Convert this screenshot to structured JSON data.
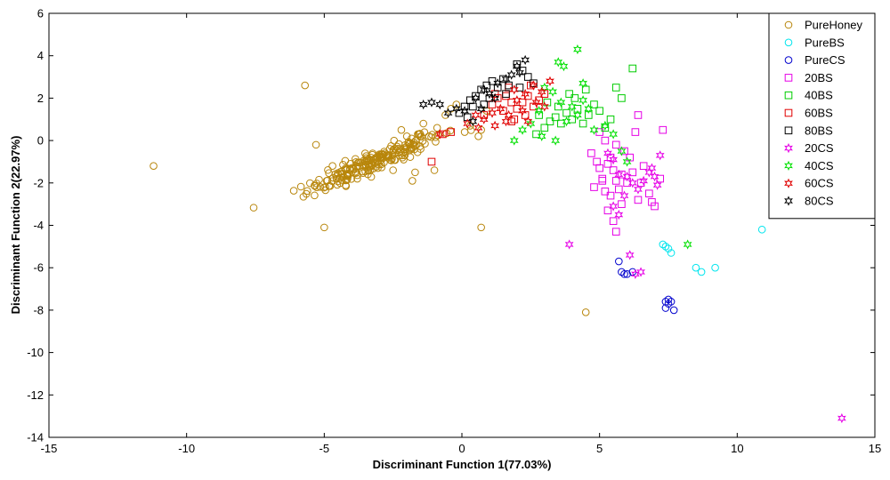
{
  "chart_data": {
    "type": "scatter",
    "title": "",
    "xlabel": "Discriminant Function 1(77.03%)",
    "ylabel": "Discriminant Function 2(22.97%)",
    "xlim": [
      -15,
      15
    ],
    "ylim": [
      -14,
      6
    ],
    "xticks": [
      -15,
      -10,
      -5,
      0,
      5,
      10,
      15
    ],
    "yticks": [
      -14,
      -12,
      -10,
      -8,
      -6,
      -4,
      -2,
      0,
      2,
      4,
      6
    ],
    "grid": false,
    "legend_position": "top-right",
    "series": [
      {
        "name": "PureHoney",
        "marker": "circle",
        "color": "#b8860b",
        "cluster": {
          "center": [
            -3.2,
            -1.0
          ],
          "count": 210,
          "direction": [
            0.87,
            0.49
          ],
          "spread_along": 1.4,
          "spread_across": 0.22
        },
        "points": [
          [
            -11.2,
            -1.2
          ],
          [
            -5.7,
            2.6
          ],
          [
            -5.3,
            -0.2
          ],
          [
            -5.0,
            -4.1
          ],
          [
            -4.7,
            -1.2
          ],
          [
            -4.5,
            -1.6
          ],
          [
            -1.8,
            -1.9
          ],
          [
            -1.7,
            -1.5
          ],
          [
            -1.0,
            -1.4
          ],
          [
            -1.2,
            0.2
          ],
          [
            -0.9,
            0.6
          ],
          [
            -0.6,
            1.2
          ],
          [
            -0.4,
            1.5
          ],
          [
            -0.2,
            1.7
          ],
          [
            0.1,
            0.4
          ],
          [
            0.3,
            0.7
          ],
          [
            0.6,
            0.2
          ],
          [
            0.7,
            0.5
          ],
          [
            0.9,
            1.4
          ],
          [
            0.7,
            -4.1
          ],
          [
            4.5,
            -8.1
          ],
          [
            -2.2,
            0.5
          ],
          [
            -2.0,
            0.2
          ],
          [
            -1.6,
            0.3
          ],
          [
            -1.4,
            0.8
          ],
          [
            -1.5,
            -0.4
          ],
          [
            -2.5,
            -1.4
          ],
          [
            -3.8,
            -1.8
          ],
          [
            -4.3,
            -1.7
          ]
        ]
      },
      {
        "name": "PureBS",
        "marker": "circle",
        "color": "#00e5ee",
        "points": [
          [
            7.3,
            -4.9
          ],
          [
            7.4,
            -5.0
          ],
          [
            7.5,
            -5.1
          ],
          [
            7.6,
            -5.3
          ],
          [
            8.5,
            -6.0
          ],
          [
            8.7,
            -6.2
          ],
          [
            9.2,
            -6.0
          ],
          [
            10.9,
            -4.2
          ]
        ]
      },
      {
        "name": "PureCS",
        "marker": "circle",
        "color": "#0000cd",
        "points": [
          [
            5.7,
            -5.7
          ],
          [
            5.8,
            -6.2
          ],
          [
            5.9,
            -6.3
          ],
          [
            6.0,
            -6.3
          ],
          [
            6.2,
            -6.2
          ],
          [
            7.4,
            -7.6
          ],
          [
            7.5,
            -7.5
          ],
          [
            7.6,
            -7.6
          ],
          [
            7.4,
            -7.9
          ],
          [
            7.7,
            -8.0
          ],
          [
            7.5,
            -7.7
          ]
        ]
      },
      {
        "name": "20BS",
        "marker": "square",
        "color": "#e600e6",
        "points": [
          [
            4.7,
            -0.6
          ],
          [
            4.9,
            -1.0
          ],
          [
            5.0,
            -1.3
          ],
          [
            4.8,
            -2.2
          ],
          [
            5.1,
            -1.8
          ],
          [
            5.2,
            -2.4
          ],
          [
            5.3,
            -1.1
          ],
          [
            5.4,
            -0.8
          ],
          [
            5.5,
            -1.4
          ],
          [
            5.6,
            -1.9
          ],
          [
            5.7,
            -2.3
          ],
          [
            5.8,
            -1.6
          ],
          [
            5.3,
            -3.3
          ],
          [
            5.5,
            -3.8
          ],
          [
            5.6,
            -4.3
          ],
          [
            5.8,
            -3.0
          ],
          [
            6.0,
            -2.0
          ],
          [
            6.2,
            -1.5
          ],
          [
            6.4,
            -2.8
          ],
          [
            6.5,
            -2.0
          ],
          [
            6.6,
            -1.2
          ],
          [
            6.8,
            -2.5
          ],
          [
            6.9,
            -2.9
          ],
          [
            7.0,
            -3.1
          ],
          [
            7.3,
            0.5
          ],
          [
            7.2,
            -1.8
          ],
          [
            6.3,
            0.4
          ],
          [
            6.1,
            -0.8
          ],
          [
            5.9,
            -0.5
          ],
          [
            5.0,
            0.4
          ],
          [
            5.2,
            0.0
          ],
          [
            5.6,
            -0.2
          ],
          [
            6.4,
            1.2
          ],
          [
            5.1,
            -1.9
          ],
          [
            5.4,
            -2.6
          ]
        ]
      },
      {
        "name": "40BS",
        "marker": "square",
        "color": "#00cc00",
        "points": [
          [
            2.8,
            1.2
          ],
          [
            3.0,
            0.6
          ],
          [
            3.2,
            0.9
          ],
          [
            3.4,
            1.1
          ],
          [
            3.6,
            0.8
          ],
          [
            3.8,
            1.3
          ],
          [
            4.0,
            1.0
          ],
          [
            4.2,
            1.5
          ],
          [
            4.4,
            0.8
          ],
          [
            4.6,
            1.2
          ],
          [
            4.8,
            1.7
          ],
          [
            5.0,
            1.4
          ],
          [
            5.2,
            0.6
          ],
          [
            5.4,
            1.0
          ],
          [
            5.6,
            2.5
          ],
          [
            5.8,
            2.0
          ],
          [
            6.2,
            3.4
          ],
          [
            4.1,
            2.0
          ],
          [
            3.5,
            1.6
          ],
          [
            2.7,
            0.3
          ],
          [
            3.1,
            1.8
          ],
          [
            3.9,
            2.2
          ],
          [
            4.5,
            2.4
          ]
        ]
      },
      {
        "name": "60BS",
        "marker": "square",
        "color": "#e00000",
        "points": [
          [
            -1.1,
            -1.0
          ],
          [
            -0.7,
            0.3
          ],
          [
            -0.4,
            0.4
          ],
          [
            0.8,
            1.2
          ],
          [
            1.1,
            1.7
          ],
          [
            1.3,
            2.0
          ],
          [
            1.6,
            2.1
          ],
          [
            1.8,
            1.8
          ],
          [
            2.0,
            1.5
          ],
          [
            2.2,
            1.8
          ],
          [
            2.4,
            2.1
          ],
          [
            2.6,
            1.6
          ],
          [
            2.8,
            1.9
          ],
          [
            3.0,
            2.2
          ],
          [
            1.5,
            1.4
          ],
          [
            1.9,
            1.0
          ],
          [
            2.3,
            1.2
          ],
          [
            1.2,
            2.2
          ],
          [
            1.7,
            2.5
          ],
          [
            2.5,
            2.6
          ],
          [
            1.8,
            0.9
          ]
        ]
      },
      {
        "name": "80BS",
        "marker": "square",
        "color": "#000000",
        "points": [
          [
            -0.1,
            1.3
          ],
          [
            0.1,
            1.6
          ],
          [
            0.3,
            1.9
          ],
          [
            0.5,
            2.1
          ],
          [
            0.7,
            2.4
          ],
          [
            0.9,
            2.6
          ],
          [
            1.1,
            2.8
          ],
          [
            1.3,
            2.5
          ],
          [
            1.5,
            2.9
          ],
          [
            1.7,
            2.6
          ],
          [
            2.0,
            3.6
          ],
          [
            2.2,
            3.3
          ],
          [
            2.4,
            3.0
          ],
          [
            2.6,
            2.7
          ],
          [
            0.8,
            1.7
          ],
          [
            1.0,
            2.0
          ],
          [
            1.6,
            2.2
          ],
          [
            2.1,
            2.5
          ],
          [
            0.2,
            1.1
          ],
          [
            0.4,
            1.6
          ]
        ]
      },
      {
        "name": "20CS",
        "marker": "star",
        "color": "#e600e6",
        "points": [
          [
            3.9,
            -4.9
          ],
          [
            5.3,
            -0.6
          ],
          [
            5.5,
            -0.9
          ],
          [
            5.7,
            -1.6
          ],
          [
            6.0,
            -1.7
          ],
          [
            6.2,
            -2.0
          ],
          [
            6.4,
            -2.3
          ],
          [
            6.6,
            -1.9
          ],
          [
            6.8,
            -1.5
          ],
          [
            7.0,
            -1.7
          ],
          [
            7.2,
            -0.7
          ],
          [
            5.5,
            -3.1
          ],
          [
            5.7,
            -3.5
          ],
          [
            5.9,
            -2.6
          ],
          [
            6.1,
            -5.4
          ],
          [
            6.3,
            -6.3
          ],
          [
            6.5,
            -6.2
          ],
          [
            13.8,
            -13.1
          ],
          [
            7.1,
            -2.1
          ],
          [
            6.9,
            -1.3
          ]
        ]
      },
      {
        "name": "40CS",
        "marker": "star",
        "color": "#00e000",
        "points": [
          [
            1.9,
            0.0
          ],
          [
            2.2,
            0.5
          ],
          [
            2.5,
            0.8
          ],
          [
            2.8,
            1.4
          ],
          [
            3.0,
            2.5
          ],
          [
            3.3,
            2.3
          ],
          [
            3.6,
            1.8
          ],
          [
            3.8,
            0.9
          ],
          [
            4.0,
            1.6
          ],
          [
            4.2,
            1.2
          ],
          [
            4.4,
            1.9
          ],
          [
            4.6,
            1.5
          ],
          [
            4.2,
            4.3
          ],
          [
            3.7,
            3.5
          ],
          [
            2.9,
            0.2
          ],
          [
            3.4,
            0.0
          ],
          [
            4.8,
            0.5
          ],
          [
            5.2,
            0.7
          ],
          [
            5.5,
            0.3
          ],
          [
            5.8,
            -0.5
          ],
          [
            6.0,
            -1.0
          ],
          [
            8.2,
            -4.9
          ],
          [
            3.5,
            3.7
          ],
          [
            4.4,
            2.7
          ]
        ]
      },
      {
        "name": "60CS",
        "marker": "star",
        "color": "#e00000",
        "points": [
          [
            -0.8,
            0.3
          ],
          [
            0.2,
            0.8
          ],
          [
            0.5,
            1.2
          ],
          [
            0.8,
            1.0
          ],
          [
            1.1,
            1.3
          ],
          [
            1.4,
            1.5
          ],
          [
            1.7,
            1.2
          ],
          [
            2.0,
            1.9
          ],
          [
            2.3,
            2.2
          ],
          [
            2.6,
            2.6
          ],
          [
            2.9,
            2.3
          ],
          [
            3.2,
            2.8
          ],
          [
            1.2,
            0.7
          ],
          [
            1.6,
            0.9
          ],
          [
            2.2,
            1.4
          ],
          [
            2.7,
            1.8
          ],
          [
            0.6,
            0.6
          ],
          [
            1.9,
            2.4
          ],
          [
            3.0,
            1.6
          ],
          [
            2.4,
            0.9
          ]
        ]
      },
      {
        "name": "80CS",
        "marker": "star",
        "color": "#000000",
        "points": [
          [
            -1.4,
            1.7
          ],
          [
            -1.1,
            1.8
          ],
          [
            -0.8,
            1.7
          ],
          [
            -0.5,
            1.3
          ],
          [
            -0.2,
            1.5
          ],
          [
            0.1,
            1.4
          ],
          [
            0.5,
            2.0
          ],
          [
            0.8,
            2.4
          ],
          [
            1.0,
            2.2
          ],
          [
            1.3,
            2.7
          ],
          [
            1.6,
            2.9
          ],
          [
            2.0,
            3.5
          ],
          [
            2.3,
            3.8
          ],
          [
            2.1,
            3.2
          ],
          [
            0.4,
            0.9
          ],
          [
            0.7,
            1.5
          ],
          [
            1.2,
            2.0
          ],
          [
            1.8,
            3.1
          ]
        ]
      }
    ]
  }
}
